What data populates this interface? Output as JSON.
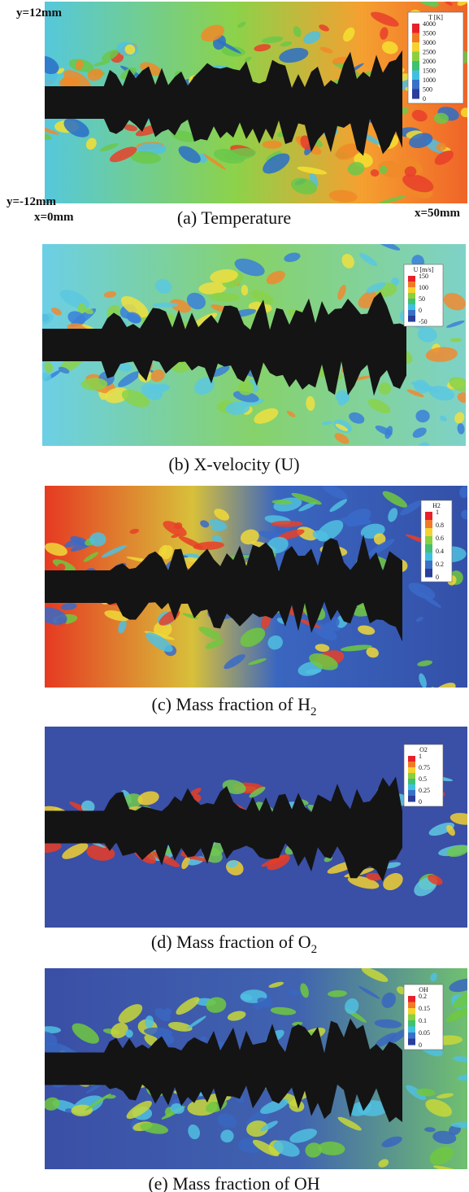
{
  "panels": [
    {
      "caption": "(a) Temperature",
      "legend": {
        "title": "T [K]",
        "ticks": [
          "4000",
          "3500",
          "3000",
          "2500",
          "2000",
          "1500",
          "1000",
          "500",
          "0"
        ]
      },
      "labels": {
        "y_top": "y=12mm",
        "y_bottom": "y=-12mm",
        "x_left": "x=0mm",
        "x_right": "x=50mm"
      }
    },
    {
      "caption": "(b) X-velocity (U)",
      "legend": {
        "title": "U [m/s]",
        "ticks": [
          "150",
          "100",
          "50",
          "0",
          "-50"
        ]
      }
    },
    {
      "caption": "(c) Mass fraction of H",
      "caption_subscript": "2",
      "legend": {
        "title": "H2",
        "ticks": [
          "1",
          "0.8",
          "0.6",
          "0.4",
          "0.2",
          "0"
        ]
      }
    },
    {
      "caption": "(d) Mass fraction of O",
      "caption_subscript": "2",
      "legend": {
        "title": "O2",
        "ticks": [
          "1",
          "0.75",
          "0.5",
          "0.25",
          "0"
        ]
      }
    },
    {
      "caption": "(e) Mass fraction of OH",
      "legend": {
        "title": "OH",
        "ticks": [
          "0.2",
          "0.15",
          "0.1",
          "0.05",
          "0"
        ]
      }
    }
  ]
}
